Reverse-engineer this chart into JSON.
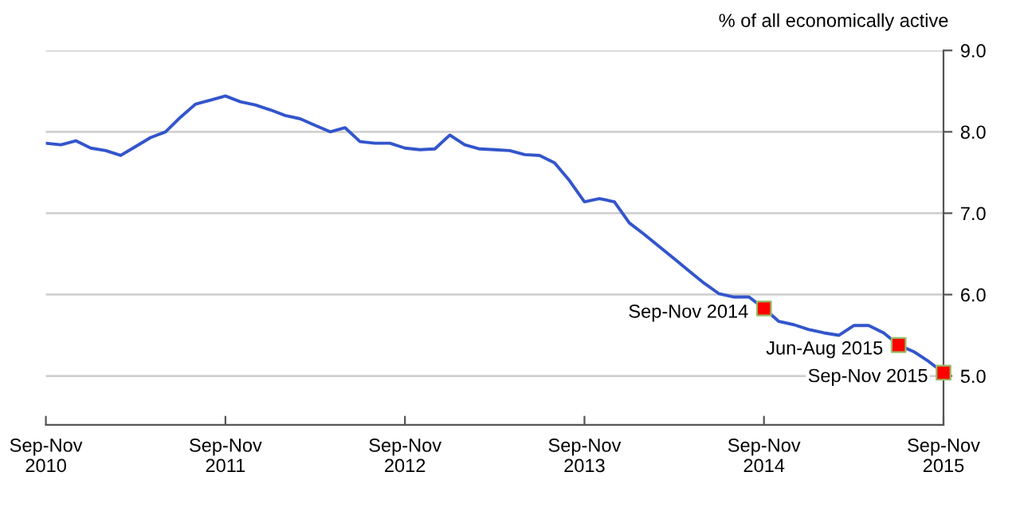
{
  "chart_data": {
    "type": "line",
    "ylabel": "% of all economically active",
    "categories": [
      "Sep-Nov\n2010",
      null,
      null,
      null,
      null,
      null,
      null,
      null,
      null,
      null,
      null,
      null,
      "Sep-Nov\n2011",
      null,
      null,
      null,
      null,
      null,
      null,
      null,
      null,
      null,
      null,
      null,
      "Sep-Nov\n2012",
      null,
      null,
      null,
      null,
      null,
      null,
      null,
      null,
      null,
      null,
      null,
      "Sep-Nov\n2013",
      null,
      null,
      null,
      null,
      null,
      null,
      null,
      null,
      null,
      null,
      null,
      "Sep-Nov\n2014",
      null,
      null,
      null,
      null,
      null,
      null,
      null,
      null,
      null,
      null,
      null,
      "Sep-Nov\n2015"
    ],
    "series": [
      {
        "color": "#3355cc",
        "values": [
          7.86,
          7.84,
          7.89,
          7.8,
          7.77,
          7.71,
          7.82,
          7.93,
          8.0,
          8.18,
          8.34,
          8.39,
          8.44,
          8.37,
          8.33,
          8.27,
          8.2,
          8.16,
          8.08,
          8.0,
          8.05,
          7.88,
          7.86,
          7.86,
          7.8,
          7.78,
          7.79,
          7.96,
          7.84,
          7.79,
          7.78,
          7.77,
          7.72,
          7.71,
          7.62,
          7.4,
          7.14,
          7.18,
          7.14,
          6.88,
          6.74,
          6.59,
          6.44,
          6.29,
          6.14,
          6.01,
          5.97,
          5.97,
          5.83,
          5.67,
          5.63,
          5.57,
          5.53,
          5.5,
          5.62,
          5.62,
          5.53,
          5.38,
          5.3,
          5.18,
          5.04
        ]
      },
      {
        "type": "scatter",
        "color": "#ff0000",
        "marker": "square",
        "values": [
          null,
          null,
          null,
          null,
          null,
          null,
          null,
          null,
          null,
          null,
          null,
          null,
          null,
          null,
          null,
          null,
          null,
          null,
          null,
          null,
          null,
          null,
          null,
          null,
          null,
          null,
          null,
          null,
          null,
          null,
          null,
          null,
          null,
          null,
          null,
          null,
          null,
          null,
          null,
          null,
          null,
          null,
          null,
          null,
          null,
          null,
          null,
          null,
          5.83,
          null,
          null,
          null,
          null,
          null,
          null,
          null,
          null,
          5.38,
          null,
          null,
          5.04
        ]
      }
    ],
    "annotations": [
      "Sep-Nov 2014",
      "Jun-Aug 2015",
      "Sep-Nov 2015"
    ],
    "ylim": [
      4.4,
      9.0
    ],
    "yticks": [
      {
        "value": 5.0,
        "label": "5.0"
      },
      {
        "value": 6.0,
        "label": "6.0"
      },
      {
        "value": 7.0,
        "label": "7.0"
      },
      {
        "value": 8.0,
        "label": "8.0"
      },
      {
        "value": 9.0,
        "label": "9.0"
      }
    ],
    "grid": "y"
  }
}
